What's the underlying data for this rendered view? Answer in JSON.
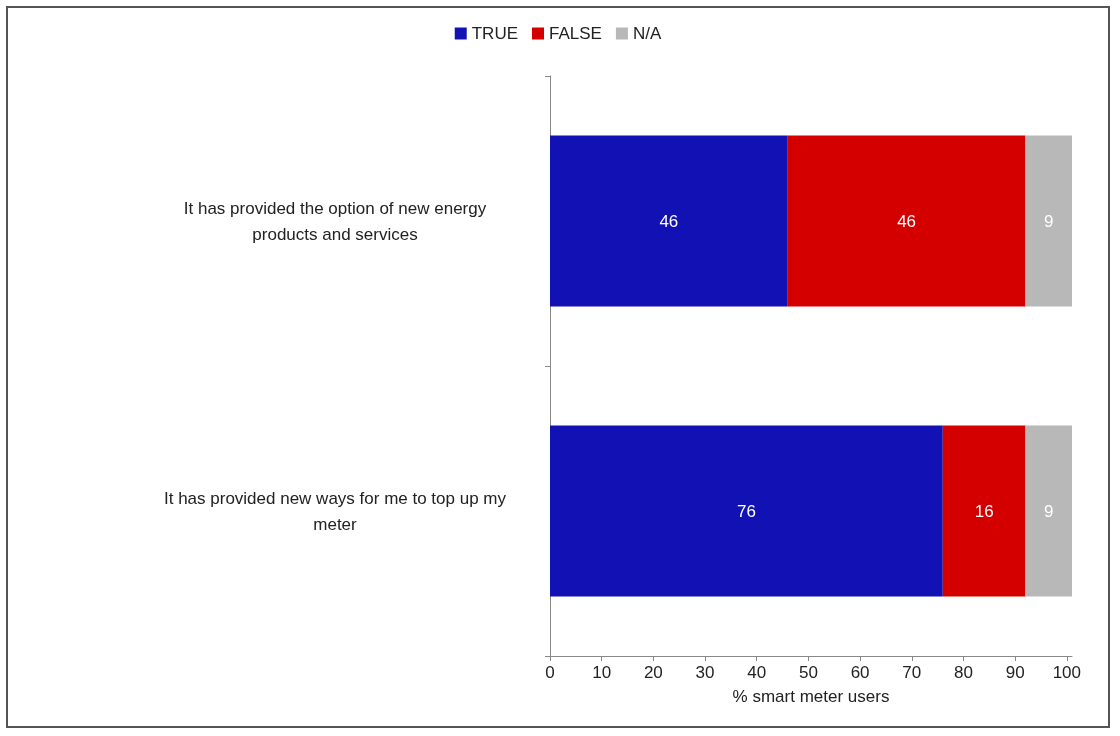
{
  "chart_data": {
    "type": "bar",
    "orientation": "horizontal",
    "stacked": true,
    "xlabel": "% smart meter users",
    "categories": [
      "It has provided the option of new energy products and services",
      "It has provided new ways for me to top up my meter"
    ],
    "series": [
      {
        "name": "TRUE",
        "color": "#1212b4",
        "values": [
          46,
          76
        ],
        "value_labels": [
          "46",
          "76"
        ]
      },
      {
        "name": "FALSE",
        "color": "#d40000",
        "values": [
          46,
          16
        ],
        "value_labels": [
          "46",
          "16"
        ]
      },
      {
        "name": "N/A",
        "color": "#b8b8b8",
        "values": [
          9,
          9
        ],
        "value_labels": [
          "9",
          "9"
        ]
      }
    ],
    "xlim": [
      0,
      101
    ],
    "xticks": [
      0,
      10,
      20,
      30,
      40,
      50,
      60,
      70,
      80,
      90,
      100
    ],
    "grid": false,
    "legend": "top"
  }
}
